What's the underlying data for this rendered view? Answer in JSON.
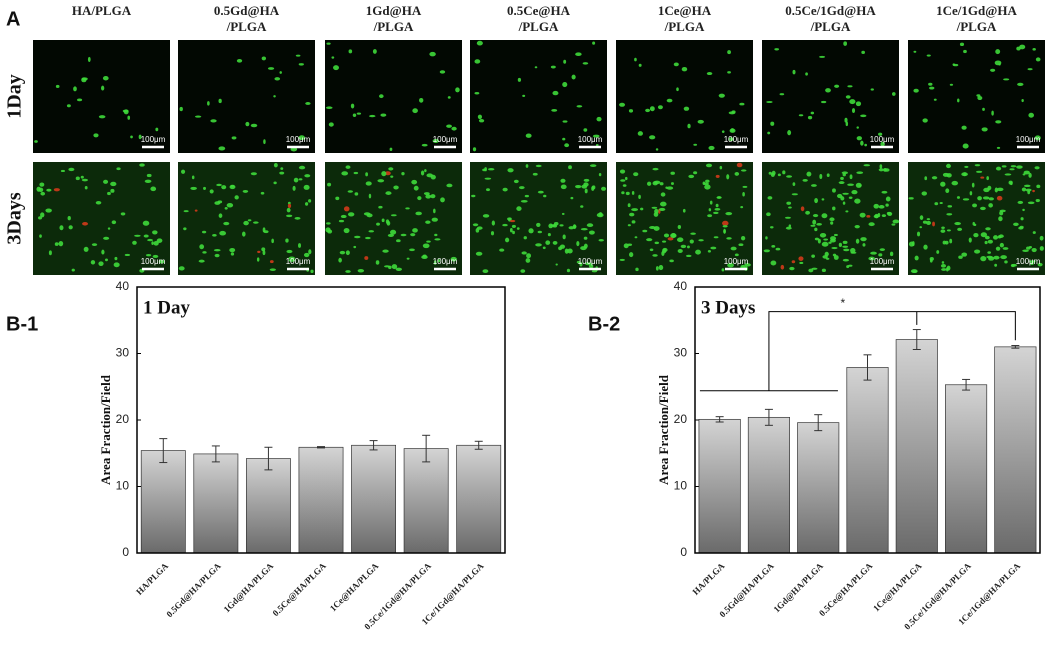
{
  "panel_a": {
    "label": "A",
    "columns": [
      [
        "HA/PLGA"
      ],
      [
        "0.5Gd@HA",
        "/PLGA"
      ],
      [
        "1Gd@HA",
        "/PLGA"
      ],
      [
        "0.5Ce@HA",
        "/PLGA"
      ],
      [
        "1Ce@HA",
        "/PLGA"
      ],
      [
        "0.5Ce/1Gd@HA",
        "/PLGA"
      ],
      [
        "1Ce/1Gd@HA",
        "/PLGA"
      ]
    ],
    "rows": [
      "1Day",
      "3Days"
    ],
    "scale_bar": "100μm"
  },
  "chart_data": [
    {
      "type": "bar",
      "panel_label": "B-1",
      "title": "1 Day",
      "ylabel": "Area Fraction/Field",
      "categories": [
        "HA/PLGA",
        "0.5Gd@HA/PLGA",
        "1Gd@HA/PLGA",
        "0.5Ce@HA/PLGA",
        "1Ce@HA/PLGA",
        "0.5Ce/1Gd@HA/PLGA",
        "1Ce/1Gd@HA/PLGA"
      ],
      "values": [
        15.4,
        14.9,
        14.2,
        15.9,
        16.2,
        15.7,
        16.2
      ],
      "errors": [
        1.8,
        1.2,
        1.7,
        0.1,
        0.7,
        2.0,
        0.6
      ],
      "ylim": [
        0,
        40
      ],
      "yticks": [
        0,
        10,
        20,
        30,
        40
      ]
    },
    {
      "type": "bar",
      "panel_label": "B-2",
      "title": "3 Days",
      "ylabel": "Area Fraction/Field",
      "categories": [
        "HA/PLGA",
        "0.5Gd@HA/PLGA",
        "1Gd@HA/PLGA",
        "0.5Ce@HA/PLGA",
        "1Ce@HA/PLGA",
        "0.5Ce/1Gd@HA/PLGA",
        "1Ce/1Gd@HA/PLGA"
      ],
      "values": [
        20.1,
        20.4,
        19.6,
        27.9,
        32.1,
        25.3,
        31.0
      ],
      "errors": [
        0.4,
        1.2,
        1.2,
        1.9,
        1.5,
        0.8,
        0.2
      ],
      "ylim": [
        0,
        40
      ],
      "yticks": [
        0,
        10,
        20,
        30,
        40
      ],
      "annotation": "*"
    }
  ]
}
